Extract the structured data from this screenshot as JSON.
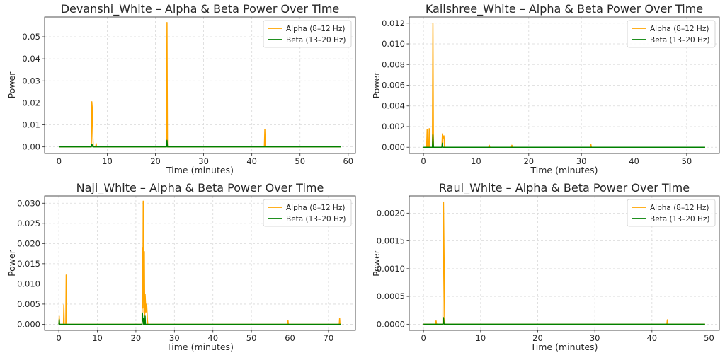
{
  "colors": {
    "alpha": "#FFA500",
    "beta": "#008000",
    "grid": "#d9d9d9",
    "axis": "#262626"
  },
  "chart_data": [
    {
      "type": "line",
      "title": "Devanshi_White – Alpha & Beta Power Over Time",
      "xlabel": "Time (minutes)",
      "ylabel": "Power",
      "xlim": [
        -3,
        61.5
      ],
      "ylim": [
        -0.003,
        0.059
      ],
      "xticks": [
        0,
        10,
        20,
        30,
        40,
        50,
        60
      ],
      "xtick_labels": [
        "0",
        "10",
        "20",
        "30",
        "40",
        "50",
        "60"
      ],
      "yticks": [
        0.0,
        0.01,
        0.02,
        0.03,
        0.04,
        0.05
      ],
      "ytick_labels": [
        "0.00",
        "0.01",
        "0.02",
        "0.03",
        "0.04",
        "0.05"
      ],
      "grid": true,
      "legend_position": "top-right",
      "series": [
        {
          "name": "Alpha (8–12 Hz)",
          "x": [
            0,
            6.7,
            6.8,
            6.9,
            7.0,
            7.1,
            7.6,
            7.7,
            7.8,
            22.3,
            22.4,
            22.5,
            42.6,
            42.7,
            42.8,
            58.5
          ],
          "values": [
            0,
            0,
            0.0205,
            0.0175,
            0.006,
            0,
            0,
            0.0015,
            0,
            0,
            0.0565,
            0,
            0,
            0.008,
            0,
            0
          ]
        },
        {
          "name": "Beta (13–20 Hz)",
          "x": [
            0,
            6.7,
            6.8,
            6.9,
            7.0,
            22.3,
            22.4,
            22.5,
            58.5
          ],
          "values": [
            0,
            0,
            0.0012,
            0.0008,
            0,
            0,
            0.003,
            0,
            0
          ]
        }
      ]
    },
    {
      "type": "line",
      "title": "Kailshree_White – Alpha & Beta Power Over Time",
      "xlabel": "Time (minutes)",
      "ylabel": "Power",
      "xlim": [
        -2.7,
        56.2
      ],
      "ylim": [
        -0.0006,
        0.0126
      ],
      "xticks": [
        0,
        10,
        20,
        30,
        40,
        50
      ],
      "xtick_labels": [
        "0",
        "10",
        "20",
        "30",
        "40",
        "50"
      ],
      "yticks": [
        0.0,
        0.002,
        0.004,
        0.006,
        0.008,
        0.01,
        0.012
      ],
      "ytick_labels": [
        "0.000",
        "0.002",
        "0.004",
        "0.006",
        "0.008",
        "0.010",
        "0.012"
      ],
      "grid": true,
      "legend_position": "top-right",
      "series": [
        {
          "name": "Alpha (8–12 Hz)",
          "x": [
            0,
            0.6,
            0.7,
            0.8,
            1.0,
            1.1,
            1.2,
            1.7,
            1.8,
            1.9,
            3.5,
            3.6,
            3.8,
            3.9,
            4.0,
            12.4,
            12.5,
            12.6,
            16.7,
            16.8,
            16.9,
            31.7,
            31.8,
            31.9,
            53.5
          ],
          "values": [
            0,
            0,
            0.0017,
            0,
            0,
            0.0018,
            0,
            0,
            0.012,
            0,
            0,
            0.0013,
            0.0009,
            0.0011,
            0,
            0,
            0.0002,
            0,
            0,
            0.0002,
            0,
            0,
            0.0003,
            0,
            0
          ]
        },
        {
          "name": "Beta (13–20 Hz)",
          "x": [
            0,
            1.7,
            1.8,
            1.9,
            3.5,
            3.6,
            3.7,
            53.5
          ],
          "values": [
            0,
            0,
            0.0012,
            0,
            0,
            0.0004,
            0,
            0
          ]
        }
      ]
    },
    {
      "type": "line",
      "title": "Naji_White – Alpha & Beta Power Over Time",
      "xlabel": "Time (minutes)",
      "ylabel": "Power",
      "xlim": [
        -3.7,
        77
      ],
      "ylim": [
        -0.0015,
        0.0318
      ],
      "xticks": [
        0,
        10,
        20,
        30,
        40,
        50,
        60,
        70
      ],
      "xtick_labels": [
        "0",
        "10",
        "20",
        "30",
        "40",
        "50",
        "60",
        "70"
      ],
      "yticks": [
        0.0,
        0.005,
        0.01,
        0.015,
        0.02,
        0.025,
        0.03
      ],
      "ytick_labels": [
        "0.000",
        "0.005",
        "0.010",
        "0.015",
        "0.020",
        "0.025",
        "0.030"
      ],
      "grid": true,
      "legend_position": "top-right",
      "series": [
        {
          "name": "Alpha (8–12 Hz)",
          "x": [
            0,
            0.1,
            0.2,
            1.2,
            1.3,
            1.4,
            1.8,
            1.9,
            2.0,
            21.6,
            21.7,
            21.8,
            21.9,
            22.0,
            22.1,
            22.2,
            22.3,
            22.4,
            22.6,
            22.8,
            23.0,
            23.1,
            59.4,
            59.5,
            59.6,
            72.8,
            72.9,
            73.0,
            73.2
          ],
          "values": [
            0,
            0.002,
            0,
            0,
            0.0048,
            0,
            0,
            0.0122,
            0,
            0,
            0.019,
            0.004,
            0.0305,
            0.026,
            0.003,
            0.018,
            0.002,
            0.0075,
            0.003,
            0.005,
            0.001,
            0,
            0,
            0.0009,
            0,
            0,
            0.0015,
            0,
            0
          ]
        },
        {
          "name": "Beta (13–20 Hz)",
          "x": [
            0,
            0.1,
            0.2,
            21.6,
            21.7,
            21.8,
            21.9,
            22.0,
            22.3,
            22.4,
            22.5,
            73.2
          ],
          "values": [
            0,
            0.0012,
            0,
            0,
            0.0028,
            0.0008,
            0.0015,
            0,
            0,
            0.002,
            0,
            0
          ]
        }
      ]
    },
    {
      "type": "line",
      "title": "Raul_White – Alpha & Beta Power Over Time",
      "xlabel": "Time (minutes)",
      "ylabel": "Power",
      "xlim": [
        -2.5,
        51.8
      ],
      "ylim": [
        -0.00011,
        0.00231
      ],
      "xticks": [
        0,
        10,
        20,
        30,
        40,
        50
      ],
      "xtick_labels": [
        "0",
        "10",
        "20",
        "30",
        "40",
        "50"
      ],
      "yticks": [
        0.0,
        0.0005,
        0.001,
        0.0015,
        0.002
      ],
      "ytick_labels": [
        "0.0000",
        "0.0005",
        "0.0010",
        "0.0015",
        "0.0020"
      ],
      "grid": true,
      "legend_position": "top-right",
      "series": [
        {
          "name": "Alpha (8–12 Hz)",
          "x": [
            0,
            2.1,
            2.2,
            2.3,
            3.4,
            3.5,
            3.6,
            3.7,
            42.6,
            42.7,
            42.8,
            49.3
          ],
          "values": [
            0,
            0,
            6e-05,
            0,
            0,
            0.0022,
            0.00125,
            0,
            0,
            8e-05,
            0,
            0
          ]
        },
        {
          "name": "Beta (13–20 Hz)",
          "x": [
            0,
            3.4,
            3.5,
            3.6,
            49.3
          ],
          "values": [
            0,
            0,
            0.00012,
            0,
            0
          ]
        }
      ]
    }
  ]
}
